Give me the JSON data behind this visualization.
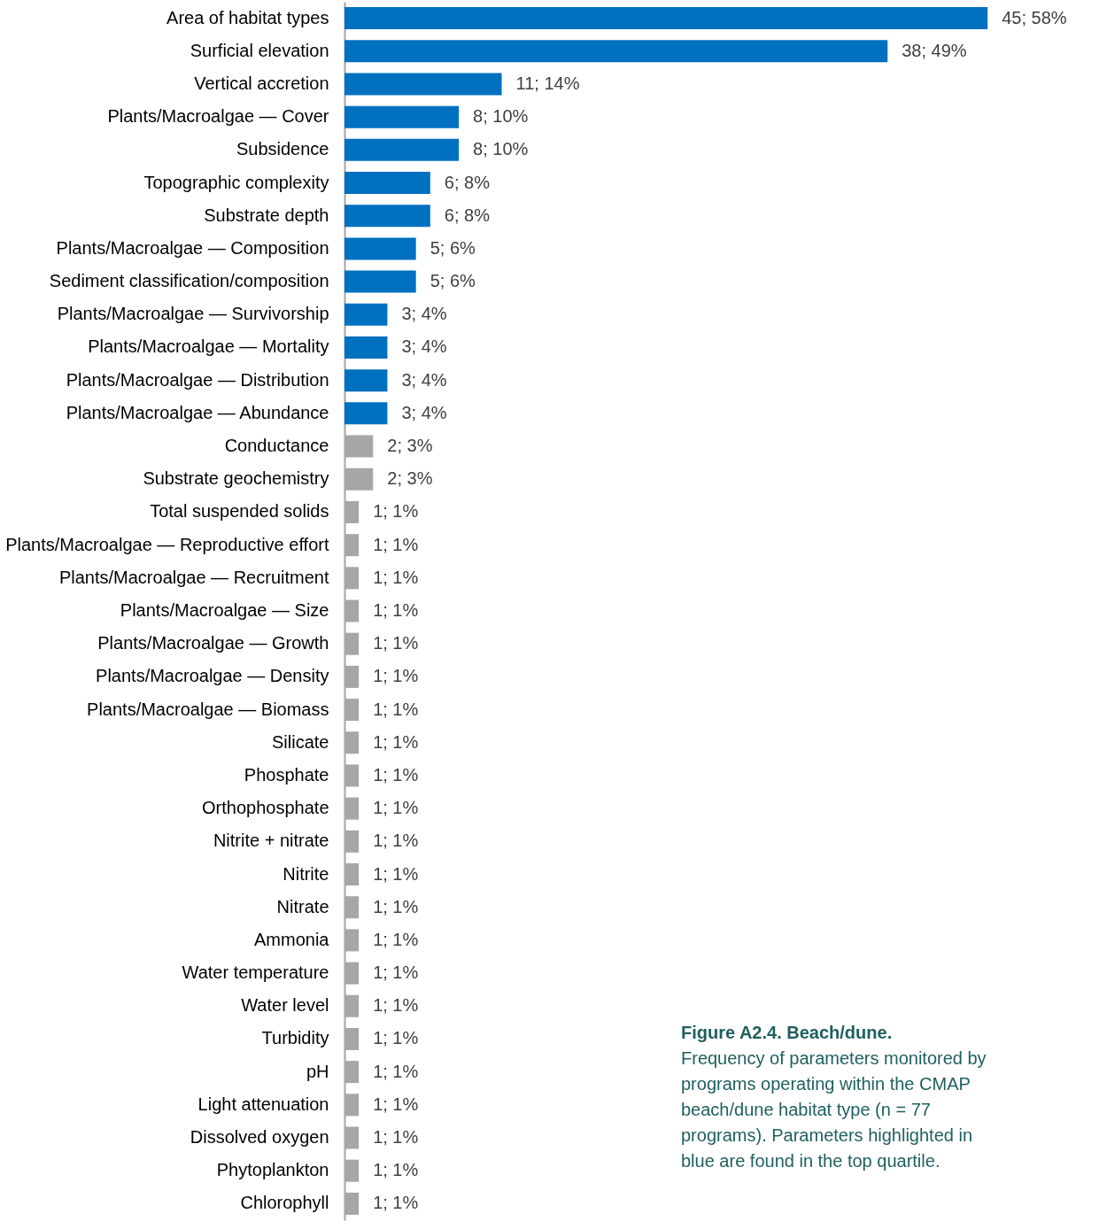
{
  "chart_data": {
    "type": "bar",
    "orientation": "horizontal",
    "categories": [
      "Area of habitat types",
      "Surficial elevation",
      "Vertical accretion",
      "Plants/Macroalgae — Cover",
      "Subsidence",
      "Topographic complexity",
      "Substrate depth",
      "Plants/Macroalgae — Composition",
      "Sediment classification/composition",
      "Plants/Macroalgae — Survivorship",
      "Plants/Macroalgae — Mortality",
      "Plants/Macroalgae — Distribution",
      "Plants/Macroalgae — Abundance",
      "Conductance",
      "Substrate geochemistry",
      "Total suspended solids",
      "Plants/Macroalgae — Reproductive effort",
      "Plants/Macroalgae — Recruitment",
      "Plants/Macroalgae — Size",
      "Plants/Macroalgae — Growth",
      "Plants/Macroalgae — Density",
      "Plants/Macroalgae — Biomass",
      "Silicate",
      "Phosphate",
      "Orthophosphate",
      "Nitrite + nitrate",
      "Nitrite",
      "Nitrate",
      "Ammonia",
      "Water temperature",
      "Water level",
      "Turbidity",
      "pH",
      "Light attenuation",
      "Dissolved oxygen",
      "Phytoplankton",
      "Chlorophyll"
    ],
    "values": [
      45,
      38,
      11,
      8,
      8,
      6,
      6,
      5,
      5,
      3,
      3,
      3,
      3,
      2,
      2,
      1,
      1,
      1,
      1,
      1,
      1,
      1,
      1,
      1,
      1,
      1,
      1,
      1,
      1,
      1,
      1,
      1,
      1,
      1,
      1,
      1,
      1
    ],
    "value_labels": [
      "45; 58%",
      "38; 49%",
      "11; 14%",
      "8; 10%",
      "8; 10%",
      "6; 8%",
      "6; 8%",
      "5; 6%",
      "5; 6%",
      "3; 4%",
      "3; 4%",
      "3; 4%",
      "3; 4%",
      "2; 3%",
      "2; 3%",
      "1; 1%",
      "1; 1%",
      "1; 1%",
      "1; 1%",
      "1; 1%",
      "1; 1%",
      "1; 1%",
      "1; 1%",
      "1; 1%",
      "1; 1%",
      "1; 1%",
      "1; 1%",
      "1; 1%",
      "1; 1%",
      "1; 1%",
      "1; 1%",
      "1; 1%",
      "1; 1%",
      "1; 1%",
      "1; 1%",
      "1; 1%",
      "1; 1%"
    ],
    "colors": [
      "#0070c0",
      "#0070c0",
      "#0070c0",
      "#0070c0",
      "#0070c0",
      "#0070c0",
      "#0070c0",
      "#0070c0",
      "#0070c0",
      "#0070c0",
      "#0070c0",
      "#0070c0",
      "#0070c0",
      "#a6a6a6",
      "#a6a6a6",
      "#a6a6a6",
      "#a6a6a6",
      "#a6a6a6",
      "#a6a6a6",
      "#a6a6a6",
      "#a6a6a6",
      "#a6a6a6",
      "#a6a6a6",
      "#a6a6a6",
      "#a6a6a6",
      "#a6a6a6",
      "#a6a6a6",
      "#a6a6a6",
      "#a6a6a6",
      "#a6a6a6",
      "#a6a6a6",
      "#a6a6a6",
      "#a6a6a6",
      "#a6a6a6",
      "#a6a6a6",
      "#a6a6a6",
      "#a6a6a6"
    ],
    "annotations": [
      "Figure A2.4. Beach/dune.",
      "Frequency of parameters monitored by programs operating within the CMAP beach/dune habitat type (n = 77 programs). Parameters highlighted in blue are found in the top quartile."
    ],
    "grid": false
  }
}
